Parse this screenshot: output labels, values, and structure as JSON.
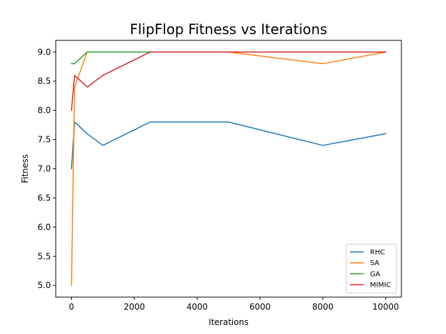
{
  "chart_data": {
    "type": "line",
    "title": "FlipFlop Fitness vs Iterations",
    "xlabel": "Iterations",
    "ylabel": "Fitness",
    "xlim": [
      -500,
      10500
    ],
    "ylim": [
      4.8,
      9.2
    ],
    "xticks": [
      0,
      2000,
      4000,
      6000,
      8000,
      10000
    ],
    "yticks": [
      5.0,
      5.5,
      6.0,
      6.5,
      7.0,
      7.5,
      8.0,
      8.5,
      9.0
    ],
    "grid": false,
    "legend_position": "bottom-right",
    "series": [
      {
        "name": "RHC",
        "color": "#1f77b4",
        "x": [
          0,
          100,
          500,
          1000,
          2500,
          5000,
          8000,
          10000
        ],
        "y": [
          7.0,
          7.8,
          7.6,
          7.4,
          7.8,
          7.8,
          7.4,
          7.6
        ]
      },
      {
        "name": "SA",
        "color": "#ff7f0e",
        "x": [
          0,
          100,
          500,
          1000,
          2500,
          5000,
          8000,
          10000
        ],
        "y": [
          5.0,
          8.4,
          9.0,
          9.0,
          9.0,
          9.0,
          8.8,
          9.0
        ]
      },
      {
        "name": "GA",
        "color": "#2ca02c",
        "x": [
          0,
          100,
          500,
          1000,
          2500,
          5000,
          8000,
          10000
        ],
        "y": [
          8.8,
          8.8,
          9.0,
          9.0,
          9.0,
          9.0,
          9.0,
          9.0
        ]
      },
      {
        "name": "MIMIC",
        "color": "#d62728",
        "x": [
          0,
          100,
          500,
          1000,
          2500,
          5000,
          8000,
          10000
        ],
        "y": [
          8.0,
          8.6,
          8.4,
          8.6,
          9.0,
          9.0,
          9.0,
          9.0
        ]
      }
    ]
  }
}
